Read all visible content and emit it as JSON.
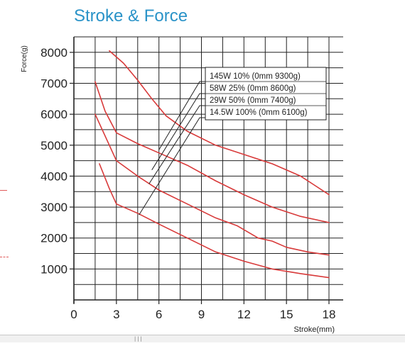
{
  "chart_data": {
    "type": "line",
    "title": "Stroke & Force",
    "xlabel": "Stroke(mm)",
    "ylabel": "Force(g)",
    "xlim": [
      0,
      18
    ],
    "ylim": [
      0,
      8500
    ],
    "x_ticks": [
      0,
      3,
      6,
      9,
      12,
      15,
      18
    ],
    "y_ticks": [
      1000,
      2000,
      3000,
      4000,
      5000,
      6000,
      7000,
      8000
    ],
    "grid": true,
    "legend_position": "top-right",
    "colors": {
      "title": "#2a93c8",
      "series": "#d83a3a",
      "axis": "#222222",
      "grid": "#222222"
    },
    "series": [
      {
        "name": "145W 10% (0mm 9300g)",
        "x": [
          2.5,
          3.5,
          4.5,
          5.5,
          6.5,
          8.0,
          10.0,
          12.0,
          14.0,
          16.0,
          17.0,
          18.0
        ],
        "y": [
          8050,
          7650,
          7100,
          6500,
          5950,
          5450,
          5000,
          4700,
          4400,
          4000,
          3700,
          3400
        ]
      },
      {
        "name": "58W 25% (0mm 8600g)",
        "x": [
          1.5,
          2.2,
          3.0,
          4.5,
          6.0,
          8.0,
          10.0,
          12.0,
          14.0,
          16.0,
          18.0
        ],
        "y": [
          7050,
          6100,
          5400,
          5050,
          4750,
          4350,
          3850,
          3400,
          3000,
          2700,
          2500
        ]
      },
      {
        "name": "29W 50% (0mm 7400g)",
        "x": [
          1.5,
          2.2,
          3.0,
          4.5,
          6.0,
          8.0,
          10.0,
          11.5,
          13.0,
          14.0,
          15.0,
          16.5,
          18.0
        ],
        "y": [
          6000,
          5300,
          4500,
          4000,
          3550,
          3100,
          2650,
          2400,
          2000,
          1900,
          1700,
          1550,
          1450
        ]
      },
      {
        "name": "14.5W 100% (0mm 6100g)",
        "x": [
          1.8,
          2.5,
          3.0,
          4.5,
          6.0,
          8.0,
          10.0,
          12.0,
          14.0,
          16.0,
          18.0
        ],
        "y": [
          4400,
          3600,
          3100,
          2800,
          2450,
          2000,
          1550,
          1250,
          1000,
          850,
          720
        ]
      }
    ],
    "legend_pointers": [
      {
        "series": 0,
        "target": [
          6.0,
          4850
        ]
      },
      {
        "series": 1,
        "target": [
          5.5,
          4200
        ]
      },
      {
        "series": 2,
        "target": [
          5.3,
          3750
        ]
      },
      {
        "series": 3,
        "target": [
          4.6,
          2750
        ]
      }
    ]
  }
}
